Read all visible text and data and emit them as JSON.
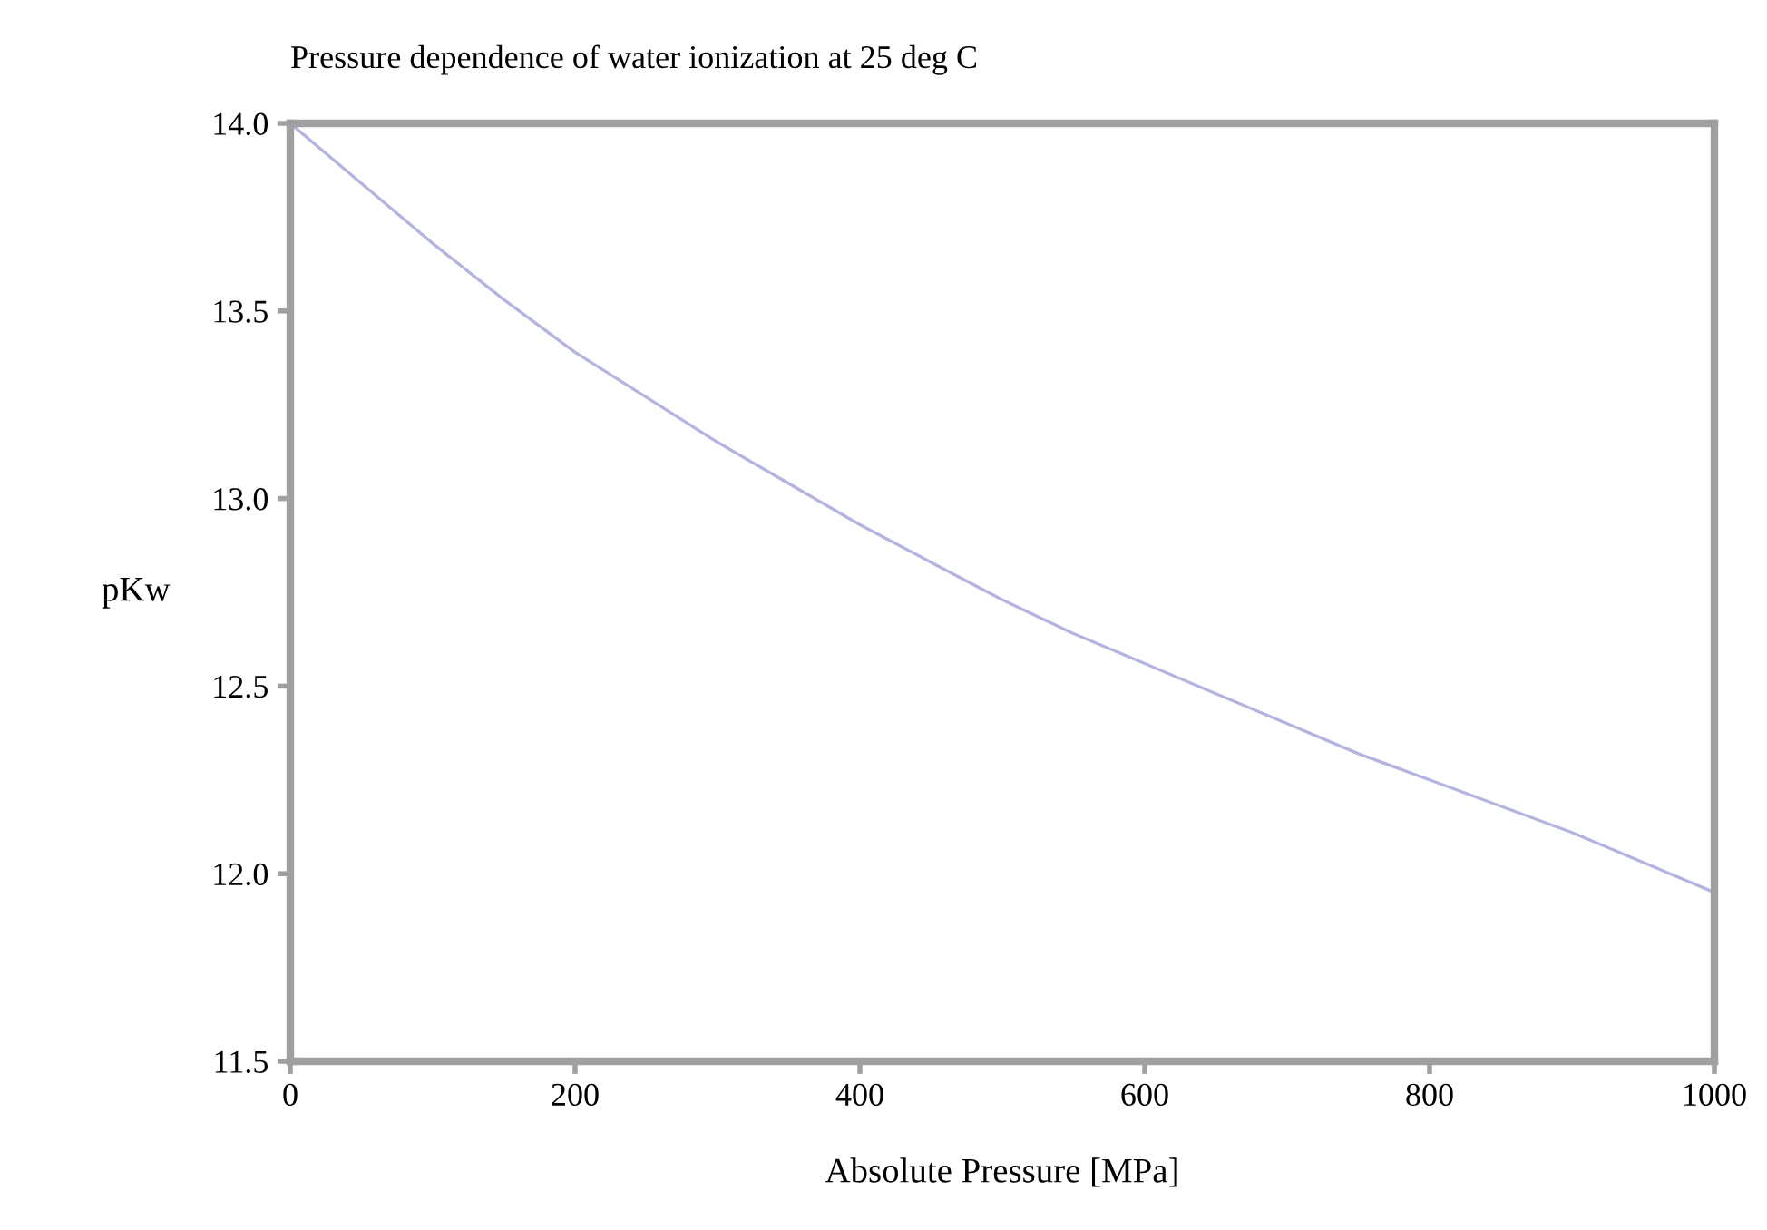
{
  "chart_data": {
    "type": "line",
    "title": "Pressure dependence of water ionization at 25 deg C",
    "xlabel": "Absolute Pressure [MPa]",
    "ylabel": "pKw",
    "x": [
      0,
      50,
      100,
      150,
      200,
      250,
      300,
      350,
      400,
      450,
      500,
      550,
      600,
      650,
      700,
      750,
      800,
      850,
      900,
      950,
      1000
    ],
    "series": [
      {
        "color": "#b4b4e0",
        "values": [
          14.0,
          13.84,
          13.68,
          13.53,
          13.39,
          13.27,
          13.15,
          13.04,
          12.93,
          12.83,
          12.73,
          12.64,
          12.56,
          12.48,
          12.4,
          12.32,
          12.25,
          12.18,
          12.11,
          12.03,
          11.95
        ]
      }
    ],
    "xlim": [
      0,
      1000
    ],
    "xticks": [
      0,
      200,
      400,
      600,
      800,
      1000
    ],
    "ylim": [
      11.5,
      14.0
    ],
    "yticks": [
      {
        "value": 11.5,
        "label": "11.5"
      },
      {
        "value": 12.0,
        "label": "12.0"
      },
      {
        "value": 12.5,
        "label": "12.5"
      },
      {
        "value": 13.0,
        "label": "13.0"
      },
      {
        "value": 13.5,
        "label": "13.5"
      },
      {
        "value": 14.0,
        "label": "14.0"
      }
    ],
    "grid": false,
    "legend": false,
    "marker": "none",
    "line_style": "solid"
  }
}
